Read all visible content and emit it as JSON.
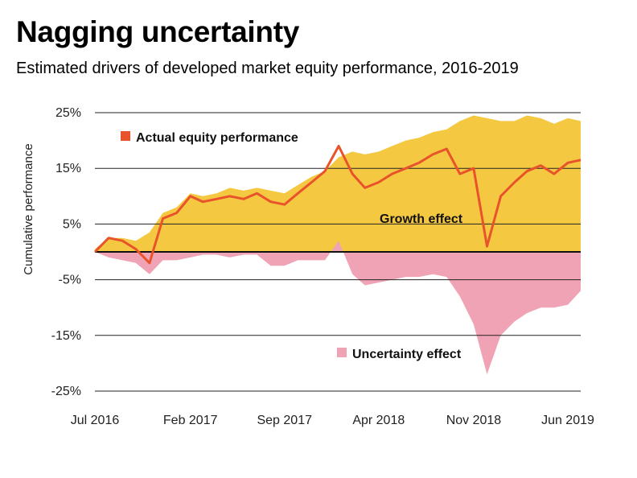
{
  "title": "Nagging uncertainty",
  "subtitle": "Estimated drivers of developed market equity performance, 2016-2019",
  "chart_data": {
    "type": "area",
    "ylabel": "Cumulative performance",
    "ylim": [
      -28,
      26
    ],
    "yticks": [
      25,
      15,
      5,
      -5,
      -15,
      -25
    ],
    "ytick_labels": [
      "25%",
      "15%",
      "5%",
      "-5%",
      "-15%",
      "-25%"
    ],
    "xlim": [
      "2016-07-01",
      "2019-06-30"
    ],
    "xticks": [
      "2016-07-01",
      "2017-02-01",
      "2017-09-01",
      "2018-04-01",
      "2018-11-01",
      "2019-06-01"
    ],
    "xtick_labels": [
      "Jul 2016",
      "Feb 2017",
      "Sep 2017",
      "Apr 2018",
      "Nov 2018",
      "Jun 2019"
    ],
    "grid": "horizontal",
    "zero_line": true,
    "colors": {
      "growth": "#f5c842",
      "uncertainty": "#f0a3b5",
      "actual": "#e8532b",
      "grid": "#222222"
    },
    "annotations": {
      "actual_label": "Actual equity performance",
      "growth_label": "Growth effect",
      "uncertainty_label": "Uncertainty effect"
    },
    "series": [
      {
        "name": "Growth effect",
        "style": "area",
        "x": [
          "2016-07-01",
          "2016-08-01",
          "2016-09-01",
          "2016-10-01",
          "2016-11-01",
          "2016-12-01",
          "2017-01-01",
          "2017-02-01",
          "2017-03-01",
          "2017-04-01",
          "2017-05-01",
          "2017-06-01",
          "2017-07-01",
          "2017-08-01",
          "2017-09-01",
          "2017-10-01",
          "2017-11-01",
          "2017-12-01",
          "2018-01-01",
          "2018-02-01",
          "2018-03-01",
          "2018-04-01",
          "2018-05-01",
          "2018-06-01",
          "2018-07-01",
          "2018-08-01",
          "2018-09-01",
          "2018-10-01",
          "2018-11-01",
          "2018-12-01",
          "2019-01-01",
          "2019-02-01",
          "2019-03-01",
          "2019-04-01",
          "2019-05-01",
          "2019-06-01",
          "2019-06-30"
        ],
        "values": [
          0.5,
          2.5,
          2.5,
          2.0,
          3.5,
          7.0,
          8.0,
          10.5,
          10.0,
          10.5,
          11.5,
          11.0,
          11.5,
          11.0,
          10.5,
          12.0,
          13.5,
          14.5,
          17.0,
          18.0,
          17.5,
          18.0,
          19.0,
          20.0,
          20.5,
          21.5,
          22.0,
          23.5,
          24.5,
          24.0,
          23.5,
          23.5,
          24.5,
          24.0,
          23.0,
          24.0,
          23.5
        ]
      },
      {
        "name": "Uncertainty effect",
        "style": "area",
        "x": [
          "2016-07-01",
          "2016-08-01",
          "2016-09-01",
          "2016-10-01",
          "2016-11-01",
          "2016-12-01",
          "2017-01-01",
          "2017-02-01",
          "2017-03-01",
          "2017-04-01",
          "2017-05-01",
          "2017-06-01",
          "2017-07-01",
          "2017-08-01",
          "2017-09-01",
          "2017-10-01",
          "2017-11-01",
          "2017-12-01",
          "2018-01-01",
          "2018-02-01",
          "2018-03-01",
          "2018-04-01",
          "2018-05-01",
          "2018-06-01",
          "2018-07-01",
          "2018-08-01",
          "2018-09-01",
          "2018-10-01",
          "2018-11-01",
          "2018-12-01",
          "2019-01-01",
          "2019-02-01",
          "2019-03-01",
          "2019-04-01",
          "2019-05-01",
          "2019-06-01",
          "2019-06-30"
        ],
        "values": [
          0,
          -1.0,
          -1.5,
          -2.0,
          -4.0,
          -1.5,
          -1.5,
          -1.0,
          -0.5,
          -0.5,
          -1.0,
          -0.5,
          -0.5,
          -2.5,
          -2.5,
          -1.5,
          -1.5,
          -1.5,
          2.0,
          -4.0,
          -6.0,
          -5.5,
          -5.0,
          -4.5,
          -4.5,
          -4.0,
          -4.5,
          -8.0,
          -13.0,
          -22.0,
          -15.0,
          -12.5,
          -11.0,
          -10.0,
          -10.0,
          -9.5,
          -7.0
        ]
      },
      {
        "name": "Actual equity performance",
        "style": "line",
        "x": [
          "2016-07-01",
          "2016-08-01",
          "2016-09-01",
          "2016-10-01",
          "2016-11-01",
          "2016-12-01",
          "2017-01-01",
          "2017-02-01",
          "2017-03-01",
          "2017-04-01",
          "2017-05-01",
          "2017-06-01",
          "2017-07-01",
          "2017-08-01",
          "2017-09-01",
          "2017-10-01",
          "2017-11-01",
          "2017-12-01",
          "2018-01-01",
          "2018-02-01",
          "2018-03-01",
          "2018-04-01",
          "2018-05-01",
          "2018-06-01",
          "2018-07-01",
          "2018-08-01",
          "2018-09-01",
          "2018-10-01",
          "2018-11-01",
          "2018-12-01",
          "2019-01-01",
          "2019-02-01",
          "2019-03-01",
          "2019-04-01",
          "2019-05-01",
          "2019-06-01",
          "2019-06-30"
        ],
        "values": [
          0.0,
          2.5,
          2.0,
          0.5,
          -2.0,
          6.0,
          7.0,
          10.0,
          9.0,
          9.5,
          10.0,
          9.5,
          10.5,
          9.0,
          8.5,
          10.5,
          12.5,
          14.5,
          19.0,
          14.0,
          11.5,
          12.5,
          14.0,
          15.0,
          16.0,
          17.5,
          18.5,
          14.0,
          15.0,
          1.0,
          10.0,
          12.5,
          14.5,
          15.5,
          14.0,
          16.0,
          16.5
        ]
      }
    ]
  }
}
